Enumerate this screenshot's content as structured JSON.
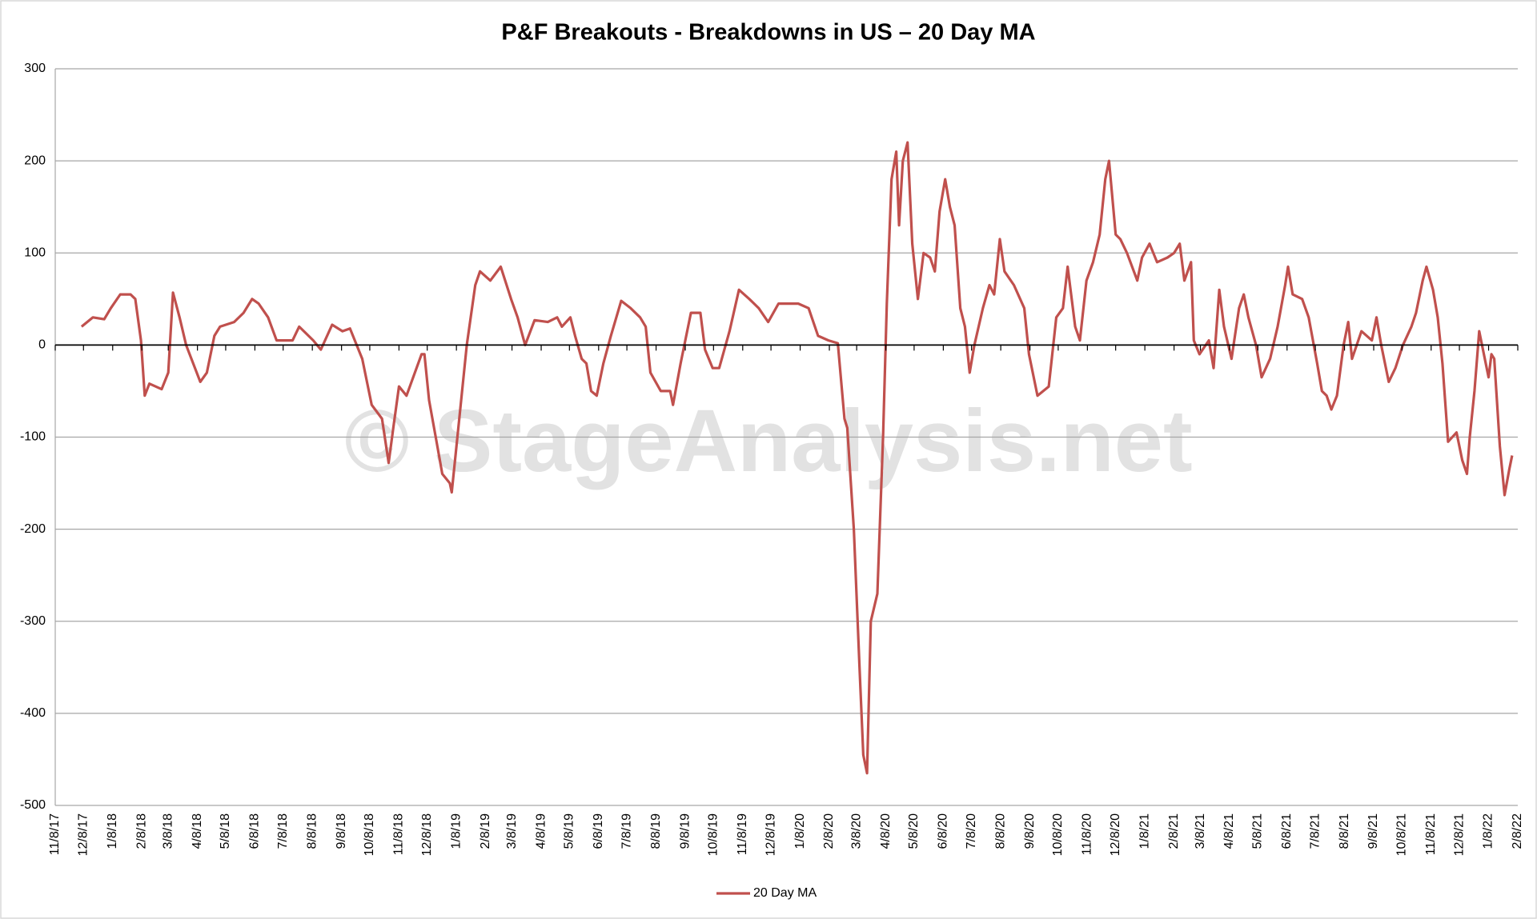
{
  "chart_data": {
    "type": "line",
    "title": "P&F Breakouts - Breakdowns in US – 20 Day MA",
    "watermark": "© StageAnalysis.net",
    "ylim": [
      -500,
      300
    ],
    "yticks": [
      300,
      200,
      100,
      0,
      -100,
      -200,
      -300,
      -400,
      -500
    ],
    "xlim": [
      "11/8/17",
      "2/8/22"
    ],
    "xticks": [
      "11/8/17",
      "12/8/17",
      "1/8/18",
      "2/8/18",
      "3/8/18",
      "4/8/18",
      "5/8/18",
      "6/8/18",
      "7/8/18",
      "8/8/18",
      "9/8/18",
      "10/8/18",
      "11/8/18",
      "12/8/18",
      "1/8/19",
      "2/8/19",
      "3/8/19",
      "4/8/19",
      "5/8/19",
      "6/8/19",
      "7/8/19",
      "8/8/19",
      "9/8/19",
      "10/8/19",
      "11/8/19",
      "12/8/19",
      "1/8/20",
      "2/8/20",
      "3/8/20",
      "4/8/20",
      "5/8/20",
      "6/8/20",
      "7/8/20",
      "8/8/20",
      "9/8/20",
      "10/8/20",
      "11/8/20",
      "12/8/20",
      "1/8/21",
      "2/8/21",
      "3/8/21",
      "4/8/21",
      "5/8/21",
      "6/8/21",
      "7/8/21",
      "8/8/21",
      "9/8/21",
      "10/8/21",
      "11/8/21",
      "12/8/21",
      "1/8/22",
      "2/8/22"
    ],
    "grid": true,
    "legend": "bottom",
    "x": [
      "12/6/17",
      "12/18/17",
      "12/30/17",
      "1/6/18",
      "1/16/18",
      "1/27/18",
      "2/1/18",
      "2/7/18",
      "2/11/18",
      "2/16/18",
      "3/1/18",
      "3/8/18",
      "3/13/18",
      "3/20/18",
      "3/27/18",
      "4/11/18",
      "4/18/18",
      "4/26/18",
      "5/2/18",
      "5/17/18",
      "5/27/18",
      "6/5/18",
      "6/12/18",
      "6/22/18",
      "7/1/18",
      "7/18/18",
      "7/25/18",
      "8/9/18",
      "8/17/18",
      "8/29/18",
      "9/9/18",
      "9/17/18",
      "9/30/18",
      "10/10/18",
      "10/21/18",
      "10/28/18",
      "11/2/18",
      "11/8/18",
      "11/16/18",
      "12/2/18",
      "12/5/18",
      "12/10/18",
      "12/17/18",
      "12/24/18",
      "1/1/19",
      "1/3/19",
      "1/12/19",
      "1/19/19",
      "1/28/19",
      "2/2/19",
      "2/13/19",
      "2/24/19",
      "3/7/19",
      "3/14/19",
      "3/22/19",
      "4/1/19",
      "4/15/19",
      "4/25/19",
      "4/30/19",
      "5/9/19",
      "5/14/19",
      "5/21/19",
      "5/26/19",
      "5/31/19",
      "6/6/19",
      "6/13/19",
      "6/21/19",
      "7/2/19",
      "7/12/19",
      "7/22/19",
      "7/28/19",
      "8/2/19",
      "8/13/19",
      "8/23/19",
      "8/26/19",
      "9/3/19",
      "9/14/19",
      "9/24/19",
      "9/29/19",
      "10/7/19",
      "10/14/19",
      "10/25/19",
      "11/4/19",
      "11/15/19",
      "11/25/19",
      "12/5/19",
      "12/16/19",
      "12/26/19",
      "1/6/20",
      "1/17/20",
      "1/27/20",
      "2/7/20",
      "2/17/20",
      "2/24/20",
      "2/27/20",
      "3/5/20",
      "3/11/20",
      "3/15/20",
      "3/19/20",
      "3/23/20",
      "3/30/20",
      "4/5/20",
      "4/9/20",
      "4/14/20",
      "4/19/20",
      "4/22/20",
      "4/26/20",
      "5/1/20",
      "5/6/20",
      "5/12/20",
      "5/18/20",
      "5/25/20",
      "5/30/20",
      "6/4/20",
      "6/10/20",
      "6/15/20",
      "6/20/20",
      "6/26/20",
      "7/1/20",
      "7/6/20",
      "7/11/20",
      "7/20/20",
      "7/27/20",
      "8/1/20",
      "8/7/20",
      "8/12/20",
      "8/22/20",
      "9/2/20",
      "9/7/20",
      "9/16/20",
      "9/28/20",
      "10/6/20",
      "10/13/20",
      "10/18/20",
      "10/26/20",
      "10/31/20",
      "11/7/20",
      "11/14/20",
      "11/21/20",
      "11/27/20",
      "12/1/20",
      "12/8/20",
      "12/13/20",
      "12/20/20",
      "12/31/20",
      "1/5/21",
      "1/13/21",
      "1/21/21",
      "2/1/21",
      "2/8/21",
      "2/14/21",
      "2/19/21",
      "2/26/21",
      "3/1/21",
      "3/7/21",
      "3/17/21",
      "3/22/21",
      "3/28/21",
      "4/2/21",
      "4/10/21",
      "4/18/21",
      "4/23/21",
      "4/28/21",
      "5/6/21",
      "5/12/21",
      "5/21/21",
      "5/29/21",
      "6/6/21",
      "6/9/21",
      "6/14/21",
      "6/24/21",
      "7/1/21",
      "7/10/21",
      "7/15/21",
      "7/20/21",
      "7/25/21",
      "7/31/21",
      "8/7/21",
      "8/12/21",
      "8/16/21",
      "8/26/21",
      "9/6/21",
      "9/11/21",
      "9/16/21",
      "9/24/21",
      "10/1/21",
      "10/9/21",
      "10/18/21",
      "10/23/21",
      "10/30/21",
      "11/3/21",
      "11/10/21",
      "11/15/21",
      "11/20/21",
      "11/26/21",
      "12/5/21",
      "12/11/21",
      "12/16/21",
      "12/19/21",
      "12/24/21",
      "12/29/21",
      "1/8/22",
      "1/11/22",
      "1/14/22",
      "1/20/22",
      "1/25/22",
      "1/30/22",
      "2/2/22"
    ],
    "series": [
      {
        "name": "20 Day MA",
        "color": "#c0504d",
        "values": [
          20,
          30,
          28,
          40,
          55,
          55,
          50,
          5,
          -55,
          -42,
          -48,
          -30,
          57,
          30,
          0,
          -40,
          -30,
          10,
          20,
          25,
          35,
          50,
          45,
          30,
          5,
          5,
          20,
          5,
          -5,
          22,
          15,
          18,
          -15,
          -65,
          -80,
          -128,
          -90,
          -45,
          -55,
          -10,
          -10,
          -60,
          -100,
          -140,
          -150,
          -160,
          -70,
          0,
          65,
          80,
          70,
          85,
          50,
          30,
          0,
          27,
          25,
          30,
          20,
          30,
          10,
          -15,
          -20,
          -50,
          -55,
          -20,
          10,
          48,
          40,
          30,
          20,
          -30,
          -50,
          -50,
          -65,
          -20,
          35,
          35,
          -5,
          -25,
          -25,
          15,
          60,
          50,
          40,
          25,
          45,
          45,
          45,
          40,
          10,
          5,
          2,
          -80,
          -90,
          -200,
          -350,
          -445,
          -465,
          -300,
          -270,
          -100,
          45,
          180,
          210,
          130,
          200,
          220,
          110,
          50,
          100,
          95,
          80,
          145,
          180,
          150,
          130,
          40,
          20,
          -30,
          0,
          40,
          65,
          55,
          115,
          80,
          65,
          40,
          -10,
          -55,
          -45,
          30,
          40,
          85,
          20,
          5,
          70,
          90,
          120,
          180,
          200,
          120,
          115,
          100,
          70,
          95,
          110,
          90,
          95,
          100,
          110,
          70,
          90,
          5,
          -10,
          5,
          -25,
          60,
          20,
          -15,
          40,
          55,
          30,
          0,
          -35,
          -15,
          20,
          65,
          85,
          55,
          50,
          30,
          -20,
          -50,
          -55,
          -70,
          -55,
          0,
          25,
          -15,
          15,
          5,
          30,
          0,
          -40,
          -25,
          0,
          20,
          35,
          70,
          85,
          60,
          30,
          -20,
          -105,
          -95,
          -125,
          -140,
          -100,
          -50,
          15,
          -35,
          -10,
          -15,
          -110,
          -163,
          -135,
          -120
        ]
      }
    ]
  }
}
